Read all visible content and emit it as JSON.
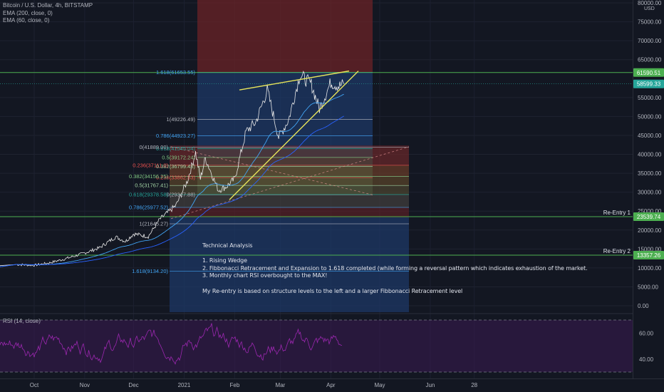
{
  "header": {
    "symbol_label": "Bitcoin / U.S. Dollar, 4h, BITSTAMP",
    "indicators": [
      "EMA (200, close, 0)",
      "EMA (60, close, 0)"
    ],
    "currency": "USD"
  },
  "rsi_label": "RSI (14, close)",
  "colors": {
    "background": "#131722",
    "price_line": "#e8e8e8",
    "ema_200": "#2962ff",
    "ema_60": "#42a5f5",
    "green_level": "#4caf50",
    "wedge": "#e6e35a",
    "rsi": "#9c27b0",
    "red_zone": "#7a2226",
    "blue_zone": "#1e3a6e"
  },
  "chart_data": {
    "type": "line",
    "price_ticks": [
      "80000.00",
      "75000.00",
      "70000.00",
      "65000.00",
      "55000.00",
      "50000.00",
      "45000.00",
      "40000.00",
      "35000.00",
      "30000.00",
      "25000.00",
      "20000.00",
      "15000.00",
      "10000.00",
      "5000.00",
      "0.00"
    ],
    "price_ylim": [
      0,
      80000
    ],
    "time_labels": [
      "Oct",
      "Nov",
      "Dec",
      "2021",
      "Feb",
      "Mar",
      "Apr",
      "May",
      "Jun",
      "28"
    ],
    "rsi_ticks": [
      "60.00",
      "40.00"
    ],
    "rsi_ylim": [
      30,
      70
    ],
    "price_tags": [
      {
        "value": 61590.51,
        "label": "61590.51"
      },
      {
        "value": 58599.33,
        "label": "58599.33"
      },
      {
        "value": 23539.74,
        "label": "23539.74"
      },
      {
        "value": 13357.26,
        "label": "13357.26"
      }
    ],
    "re_entries": [
      {
        "label": "Re-Entry 1",
        "value": 23539.74
      },
      {
        "label": "Re-Entry 2",
        "value": 13357.26
      }
    ],
    "fib_right": [
      {
        "label": "1.618(61653.55)",
        "value": 61653.55,
        "color": "#42a5f5"
      },
      {
        "label": "1(49226.49)",
        "value": 49226.49,
        "color": "#b2b5be"
      },
      {
        "label": "0.786(44923.27)",
        "value": 44923.27,
        "color": "#42a5f5"
      },
      {
        "label": "0.618(41545.04)",
        "value": 41545.04,
        "color": "#26a69a"
      },
      {
        "label": "0.5(39172.24)",
        "value": 39172.24,
        "color": "#81c784"
      },
      {
        "label": "0.382(36799.43)",
        "value": 36799.43,
        "color": "#a5d6a7"
      },
      {
        "label": "0.236(33862.53)",
        "value": 33862.53,
        "color": "#ef5350"
      },
      {
        "label": "0(29317.88)",
        "value": 29317.88,
        "color": "#b2b5be"
      }
    ],
    "fib_left": [
      {
        "label": "0(41889.00)",
        "value": 41889.0,
        "color": "#b2b5be"
      },
      {
        "label": "0.236(37111.0)",
        "value": 37111.0,
        "color": "#ef5350"
      },
      {
        "label": "0.382(34156.25)",
        "value": 34156.25,
        "color": "#81c784"
      },
      {
        "label": "0.5(31767.41)",
        "value": 31767.41,
        "color": "#a5d6a7"
      },
      {
        "label": "0.618(29378.58)",
        "value": 29378.58,
        "color": "#26a69a"
      },
      {
        "label": "0.786(25977.52)",
        "value": 25977.52,
        "color": "#42a5f5"
      },
      {
        "label": "1(21645.27)",
        "value": 21645.27,
        "color": "#b2b5be"
      },
      {
        "label": "1.618(9134.20)",
        "value": 9134.2,
        "color": "#42a5f5"
      }
    ],
    "price_series_approx": [
      {
        "x": "2020-09-20",
        "y": 10900
      },
      {
        "x": "2020-10-01",
        "y": 10700
      },
      {
        "x": "2020-10-10",
        "y": 11300
      },
      {
        "x": "2020-10-20",
        "y": 12400
      },
      {
        "x": "2020-10-31",
        "y": 13800
      },
      {
        "x": "2020-11-10",
        "y": 15300
      },
      {
        "x": "2020-11-20",
        "y": 18200
      },
      {
        "x": "2020-11-26",
        "y": 17000
      },
      {
        "x": "2020-12-01",
        "y": 19000
      },
      {
        "x": "2020-12-10",
        "y": 18300
      },
      {
        "x": "2020-12-17",
        "y": 22800
      },
      {
        "x": "2020-12-27",
        "y": 26500
      },
      {
        "x": "2021-01-03",
        "y": 33000
      },
      {
        "x": "2021-01-08",
        "y": 40500
      },
      {
        "x": "2021-01-11",
        "y": 33500
      },
      {
        "x": "2021-01-14",
        "y": 39000
      },
      {
        "x": "2021-01-22",
        "y": 30500
      },
      {
        "x": "2021-01-27",
        "y": 31500
      },
      {
        "x": "2021-02-01",
        "y": 33500
      },
      {
        "x": "2021-02-08",
        "y": 46000
      },
      {
        "x": "2021-02-14",
        "y": 48500
      },
      {
        "x": "2021-02-21",
        "y": 57000
      },
      {
        "x": "2021-02-28",
        "y": 44500
      },
      {
        "x": "2021-03-06",
        "y": 49000
      },
      {
        "x": "2021-03-13",
        "y": 61000
      },
      {
        "x": "2021-03-20",
        "y": 58500
      },
      {
        "x": "2021-03-25",
        "y": 52000
      },
      {
        "x": "2021-04-01",
        "y": 59000
      },
      {
        "x": "2021-04-06",
        "y": 58000
      },
      {
        "x": "2021-04-09",
        "y": 58599
      }
    ]
  },
  "analysis": {
    "title": "Technical Analysis",
    "points": [
      "1. Rising Wedge",
      "2. Fibbonacci Retracement and Expansion to 1.618 completed (while forming a reversal pattern which indicates exhaustion of the market.",
      "3. Monthly chart RSI overbought to the MAX!"
    ],
    "note": "My Re-entry is based on structure levels to the left and a larger Fibbonacci Retracement level"
  }
}
